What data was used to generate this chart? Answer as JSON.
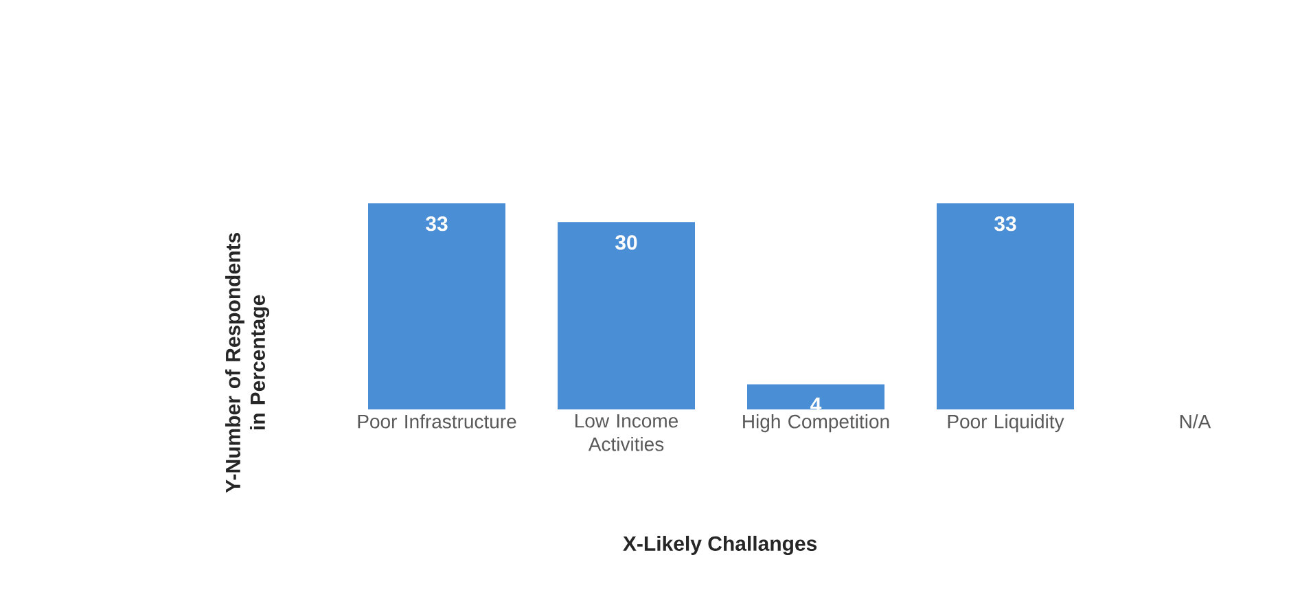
{
  "chart_data": {
    "type": "bar",
    "categories": [
      "Poor Infrastructure",
      "Low Income Activities",
      "High Competition",
      "Poor Liquidity",
      "N/A"
    ],
    "values": [
      33,
      30,
      4,
      33,
      null
    ],
    "color": "#4a8ed6",
    "data_labels": true,
    "xlabel": "X-Likely Challanges",
    "ylabel": "Y-Number of Respondents in Percentage",
    "grid": false
  }
}
